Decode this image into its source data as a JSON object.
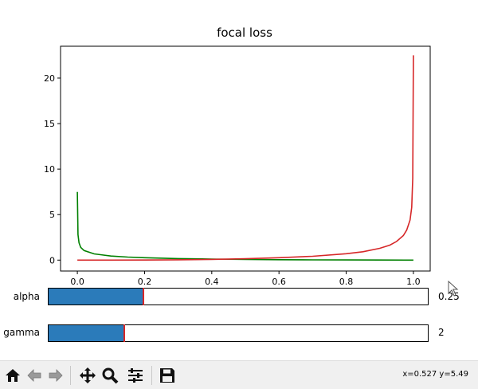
{
  "chart_data": {
    "type": "line",
    "title": "focal loss",
    "xlim": [
      -0.05,
      1.05
    ],
    "ylim": [
      -1.2,
      23.5
    ],
    "x_ticks": [
      "0.0",
      "0.2",
      "0.4",
      "0.6",
      "0.8",
      "1.0"
    ],
    "x_tick_values": [
      0,
      0.2,
      0.4,
      0.6,
      0.8,
      1.0
    ],
    "y_ticks": [
      "0",
      "5",
      "10",
      "15",
      "20"
    ],
    "y_tick_values": [
      0,
      5,
      10,
      15,
      20
    ],
    "series": [
      {
        "color": "#008000",
        "x": [
          0.0,
          0.002,
          0.005,
          0.01,
          0.02,
          0.05,
          0.1,
          0.15,
          0.2,
          0.3,
          0.4,
          0.5,
          0.6,
          0.7,
          0.8,
          0.9,
          1.0
        ],
        "y": [
          7.5,
          2.8,
          1.9,
          1.4,
          1.05,
          0.68,
          0.45,
          0.33,
          0.26,
          0.17,
          0.11,
          0.07,
          0.045,
          0.028,
          0.015,
          0.006,
          0.0
        ]
      },
      {
        "color": "#d62728",
        "x": [
          0.0,
          0.1,
          0.2,
          0.3,
          0.4,
          0.5,
          0.6,
          0.7,
          0.8,
          0.85,
          0.9,
          0.93,
          0.95,
          0.97,
          0.98,
          0.99,
          0.995,
          0.998,
          1.0
        ],
        "y": [
          0.0,
          0.003,
          0.01,
          0.035,
          0.08,
          0.15,
          0.26,
          0.42,
          0.7,
          0.92,
          1.3,
          1.65,
          2.05,
          2.7,
          3.3,
          4.4,
          5.8,
          9.0,
          22.5
        ]
      }
    ],
    "grid": false,
    "legend": "none"
  },
  "sliders": [
    {
      "label": "alpha",
      "value_text": "0.25",
      "fraction": 0.25,
      "fill_color": "#2b7bba"
    },
    {
      "label": "gamma",
      "value_text": "2",
      "fraction": 0.2,
      "fill_color": "#2b7bba"
    }
  ],
  "toolbar": {
    "buttons": [
      "home-icon",
      "back-arrow-icon",
      "forward-arrow-icon",
      "pan-icon",
      "zoom-icon",
      "configure-subplots-icon",
      "save-icon"
    ],
    "coords_text": "x=0.527 y=5.49"
  }
}
